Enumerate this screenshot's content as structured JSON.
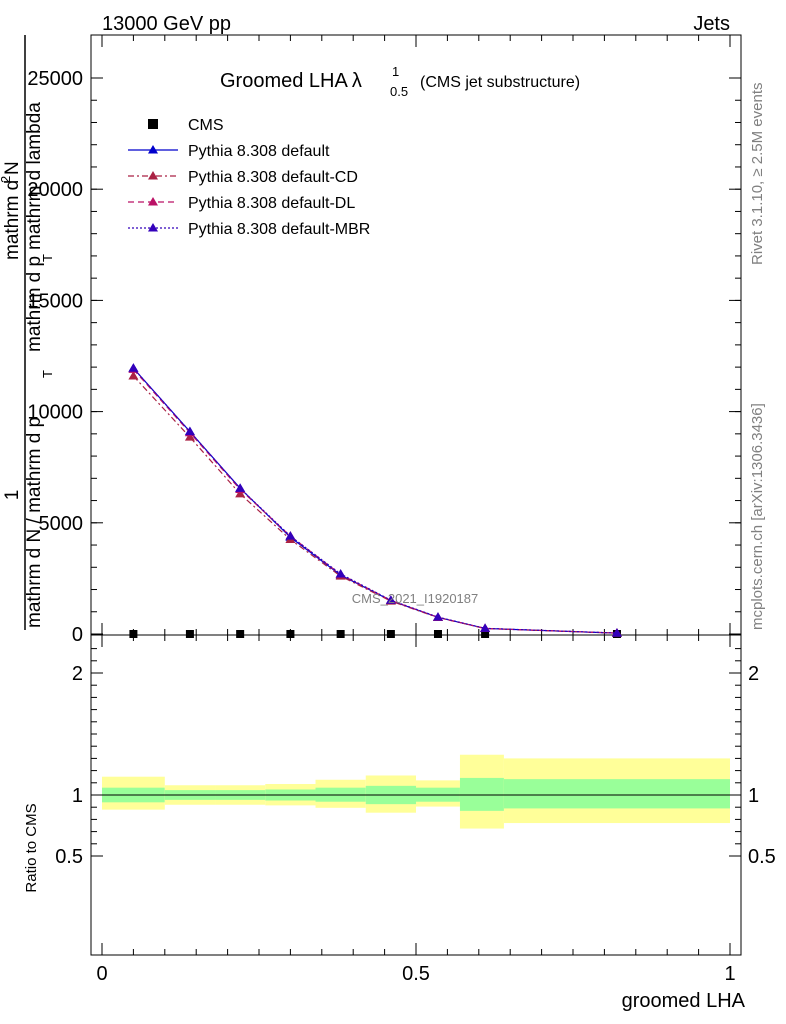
{
  "header": {
    "left_label": "13000 GeV pp",
    "right_label": "Jets"
  },
  "side_labels": {
    "rivet": "Rivet 3.1.10, ≥ 2.5M events",
    "mcplots": "mcplots.cern.ch [arXiv:1306.3436]"
  },
  "chart_data": [
    {
      "type": "line",
      "panel": "main",
      "title_main": "Groomed LHA",
      "title_lambda": "λ",
      "title_sup": "1",
      "title_sub": "0.5",
      "title_suffix": "(CMS jet substructure)",
      "ylabel_num": "mathrm d²N",
      "ylabel_den": "mathrm d p_T mathrm d lambda",
      "ylabel_full": "1 / mathrm dN / mathrm d p_T   mathrm d²N / mathrm d p_T mathrm d lambda",
      "ylabel_parts": [
        "1",
        "mathrm d N / mathrm d p",
        "T",
        "mathrm d",
        "2",
        "N",
        "mathrm d p",
        "T",
        "mathrm d lambda"
      ],
      "watermark": "CMS_2021_I1920187",
      "xlim": [
        0,
        1
      ],
      "ylim": [
        0,
        25000
      ],
      "y_ticks": [
        "0",
        "5000",
        "10000",
        "15000",
        "20000",
        "25000"
      ],
      "y_tick_values": [
        0,
        5000,
        10000,
        15000,
        20000,
        25000
      ],
      "legend_position": "top-left",
      "series": [
        {
          "name": "CMS",
          "style": "markers",
          "color": "#000000",
          "x": [
            0.05,
            0.14,
            0.22,
            0.3,
            0.38,
            0.46,
            0.535,
            0.61,
            0.82
          ],
          "values": [
            0,
            0,
            0,
            0,
            0,
            0,
            0,
            0,
            0
          ]
        },
        {
          "name": "Pythia 8.308 default",
          "style": "solid",
          "color": "#0000cc",
          "x": [
            0.05,
            0.14,
            0.22,
            0.3,
            0.38,
            0.46,
            0.535,
            0.61,
            0.82
          ],
          "values": [
            11950,
            9100,
            6550,
            4350,
            2650,
            1500,
            750,
            250,
            40
          ]
        },
        {
          "name": "Pythia 8.308 default-CD",
          "style": "dashdot",
          "color": "#aa2244",
          "x": [
            0.05,
            0.14,
            0.22,
            0.3,
            0.38,
            0.46,
            0.535,
            0.61,
            0.82
          ],
          "values": [
            11600,
            8850,
            6300,
            4250,
            2600,
            1480,
            740,
            245,
            40
          ]
        },
        {
          "name": "Pythia 8.308 default-DL",
          "style": "dashed",
          "color": "#bb1166",
          "x": [
            0.05,
            0.14,
            0.22,
            0.3,
            0.38,
            0.46,
            0.535,
            0.61,
            0.82
          ],
          "values": [
            11900,
            9050,
            6500,
            4400,
            2680,
            1510,
            750,
            250,
            40
          ]
        },
        {
          "name": "Pythia 8.308 default-MBR",
          "style": "dotted",
          "color": "#3300bb",
          "x": [
            0.05,
            0.14,
            0.22,
            0.3,
            0.38,
            0.46,
            0.535,
            0.61,
            0.82
          ],
          "values": [
            11950,
            9100,
            6550,
            4400,
            2700,
            1520,
            760,
            255,
            40
          ]
        }
      ]
    },
    {
      "type": "area",
      "panel": "ratio",
      "ylabel": "Ratio to CMS",
      "xlabel": "groomed LHA",
      "xlim": [
        0,
        1
      ],
      "ylim": [
        0.4,
        2.4
      ],
      "y_ticks": [
        "0.5",
        "1",
        "2"
      ],
      "y_tick_values": [
        0.5,
        1,
        2
      ],
      "x_ticks": [
        "0",
        "0.5",
        "1"
      ],
      "x_tick_values": [
        0,
        0.5,
        1
      ],
      "bins": [
        {
          "lo": 0.0,
          "hi": 0.1,
          "inner": [
            0.94,
            1.06
          ],
          "outer": [
            0.88,
            1.15
          ]
        },
        {
          "lo": 0.1,
          "hi": 0.18,
          "inner": [
            0.96,
            1.04
          ],
          "outer": [
            0.92,
            1.08
          ]
        },
        {
          "lo": 0.18,
          "hi": 0.26,
          "inner": [
            0.96,
            1.04
          ],
          "outer": [
            0.92,
            1.08
          ]
        },
        {
          "lo": 0.26,
          "hi": 0.34,
          "inner": [
            0.955,
            1.045
          ],
          "outer": [
            0.915,
            1.09
          ]
        },
        {
          "lo": 0.34,
          "hi": 0.42,
          "inner": [
            0.945,
            1.06
          ],
          "outer": [
            0.895,
            1.125
          ]
        },
        {
          "lo": 0.42,
          "hi": 0.5,
          "inner": [
            0.925,
            1.075
          ],
          "outer": [
            0.855,
            1.16
          ]
        },
        {
          "lo": 0.5,
          "hi": 0.57,
          "inner": [
            0.945,
            1.06
          ],
          "outer": [
            0.905,
            1.12
          ]
        },
        {
          "lo": 0.57,
          "hi": 0.64,
          "inner": [
            0.87,
            1.14
          ],
          "outer": [
            0.725,
            1.33
          ]
        },
        {
          "lo": 0.64,
          "hi": 1.0,
          "inner": [
            0.89,
            1.13
          ],
          "outer": [
            0.77,
            1.3
          ]
        }
      ],
      "colors": {
        "inner": "#99ff99",
        "outer": "#ffff99"
      }
    }
  ]
}
